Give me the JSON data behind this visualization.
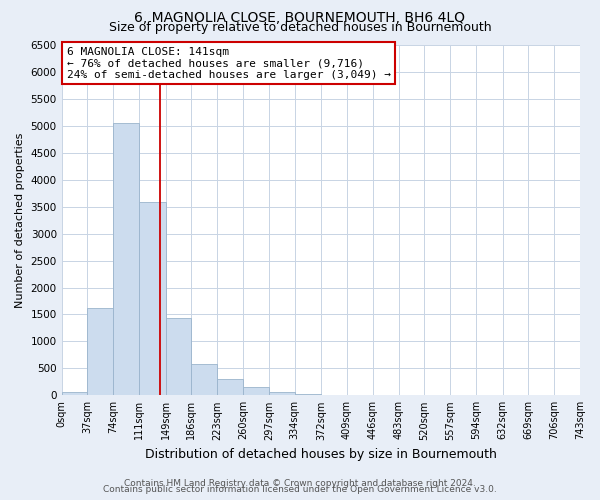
{
  "title": "6, MAGNOLIA CLOSE, BOURNEMOUTH, BH6 4LQ",
  "subtitle": "Size of property relative to detached houses in Bournemouth",
  "xlabel": "Distribution of detached houses by size in Bournemouth",
  "ylabel": "Number of detached properties",
  "bar_edges": [
    0,
    37,
    74,
    111,
    149,
    186,
    223,
    260,
    297,
    334,
    372,
    409,
    446,
    483,
    520,
    557,
    594,
    632,
    669,
    706,
    743
  ],
  "bar_heights": [
    65,
    1620,
    5060,
    3580,
    1430,
    590,
    300,
    150,
    60,
    20,
    5,
    2,
    0,
    0,
    0,
    0,
    0,
    0,
    0,
    0
  ],
  "bar_color": "#ccdcee",
  "bar_edgecolor": "#9ab4cc",
  "vline_x": 141,
  "vline_color": "#cc0000",
  "annotation_line1": "6 MAGNOLIA CLOSE: 141sqm",
  "annotation_line2": "← 76% of detached houses are smaller (9,716)",
  "annotation_line3": "24% of semi-detached houses are larger (3,049) →",
  "annotation_box_facecolor": "white",
  "annotation_box_edgecolor": "#cc0000",
  "ylim": [
    0,
    6500
  ],
  "yticks": [
    0,
    500,
    1000,
    1500,
    2000,
    2500,
    3000,
    3500,
    4000,
    4500,
    5000,
    5500,
    6000,
    6500
  ],
  "tick_labels": [
    "0sqm",
    "37sqm",
    "74sqm",
    "111sqm",
    "149sqm",
    "186sqm",
    "223sqm",
    "260sqm",
    "297sqm",
    "334sqm",
    "372sqm",
    "409sqm",
    "446sqm",
    "483sqm",
    "520sqm",
    "557sqm",
    "594sqm",
    "632sqm",
    "669sqm",
    "706sqm",
    "743sqm"
  ],
  "footer1": "Contains HM Land Registry data © Crown copyright and database right 2024.",
  "footer2": "Contains public sector information licensed under the Open Government Licence v3.0.",
  "background_color": "#e8eef7",
  "plot_background": "white",
  "title_fontsize": 10,
  "subtitle_fontsize": 9,
  "ylabel_fontsize": 8,
  "xlabel_fontsize": 9,
  "annotation_fontsize": 8,
  "tick_fontsize": 7,
  "ytick_fontsize": 7.5,
  "footer_fontsize": 6.5,
  "grid_color": "#c8d4e4"
}
